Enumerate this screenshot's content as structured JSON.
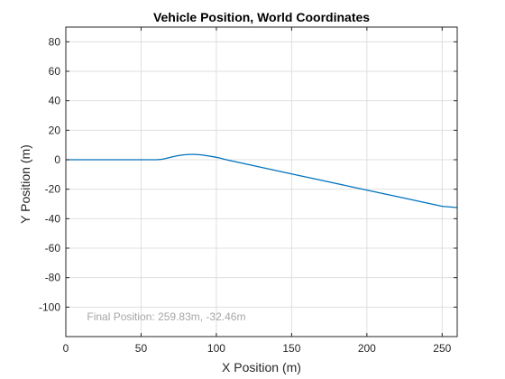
{
  "chart_data": {
    "type": "line",
    "title": "Vehicle Position, World Coordinates",
    "xlabel": "X Position (m)",
    "ylabel": "Y Position (m)",
    "xlim": [
      0,
      260
    ],
    "ylim": [
      -120,
      90
    ],
    "xticks": [
      0,
      50,
      100,
      150,
      200,
      250
    ],
    "yticks": [
      -100,
      -80,
      -60,
      -40,
      -20,
      0,
      20,
      40,
      60,
      80
    ],
    "grid": true,
    "series": [
      {
        "color": "#0072bd",
        "x": [
          0,
          20,
          40,
          60,
          63,
          66,
          70,
          74,
          78,
          82,
          86,
          90,
          94,
          98,
          102,
          106,
          110,
          130,
          150,
          170,
          190,
          210,
          230,
          250,
          259.83
        ],
        "y": [
          0,
          0,
          0,
          0,
          0.2,
          0.8,
          1.8,
          2.7,
          3.3,
          3.6,
          3.6,
          3.3,
          2.7,
          2.0,
          1.2,
          0.2,
          -0.8,
          -5.2,
          -9.6,
          -14.0,
          -18.4,
          -22.8,
          -27.2,
          -31.6,
          -32.46
        ]
      }
    ],
    "annotations": [
      {
        "text": "Final Position: 259.83m, -32.46m",
        "x": 14,
        "y": -109
      }
    ]
  },
  "colors": {
    "axis": "#262626",
    "grid": "#dfdfdf",
    "annotation": "#a6a6a6"
  }
}
